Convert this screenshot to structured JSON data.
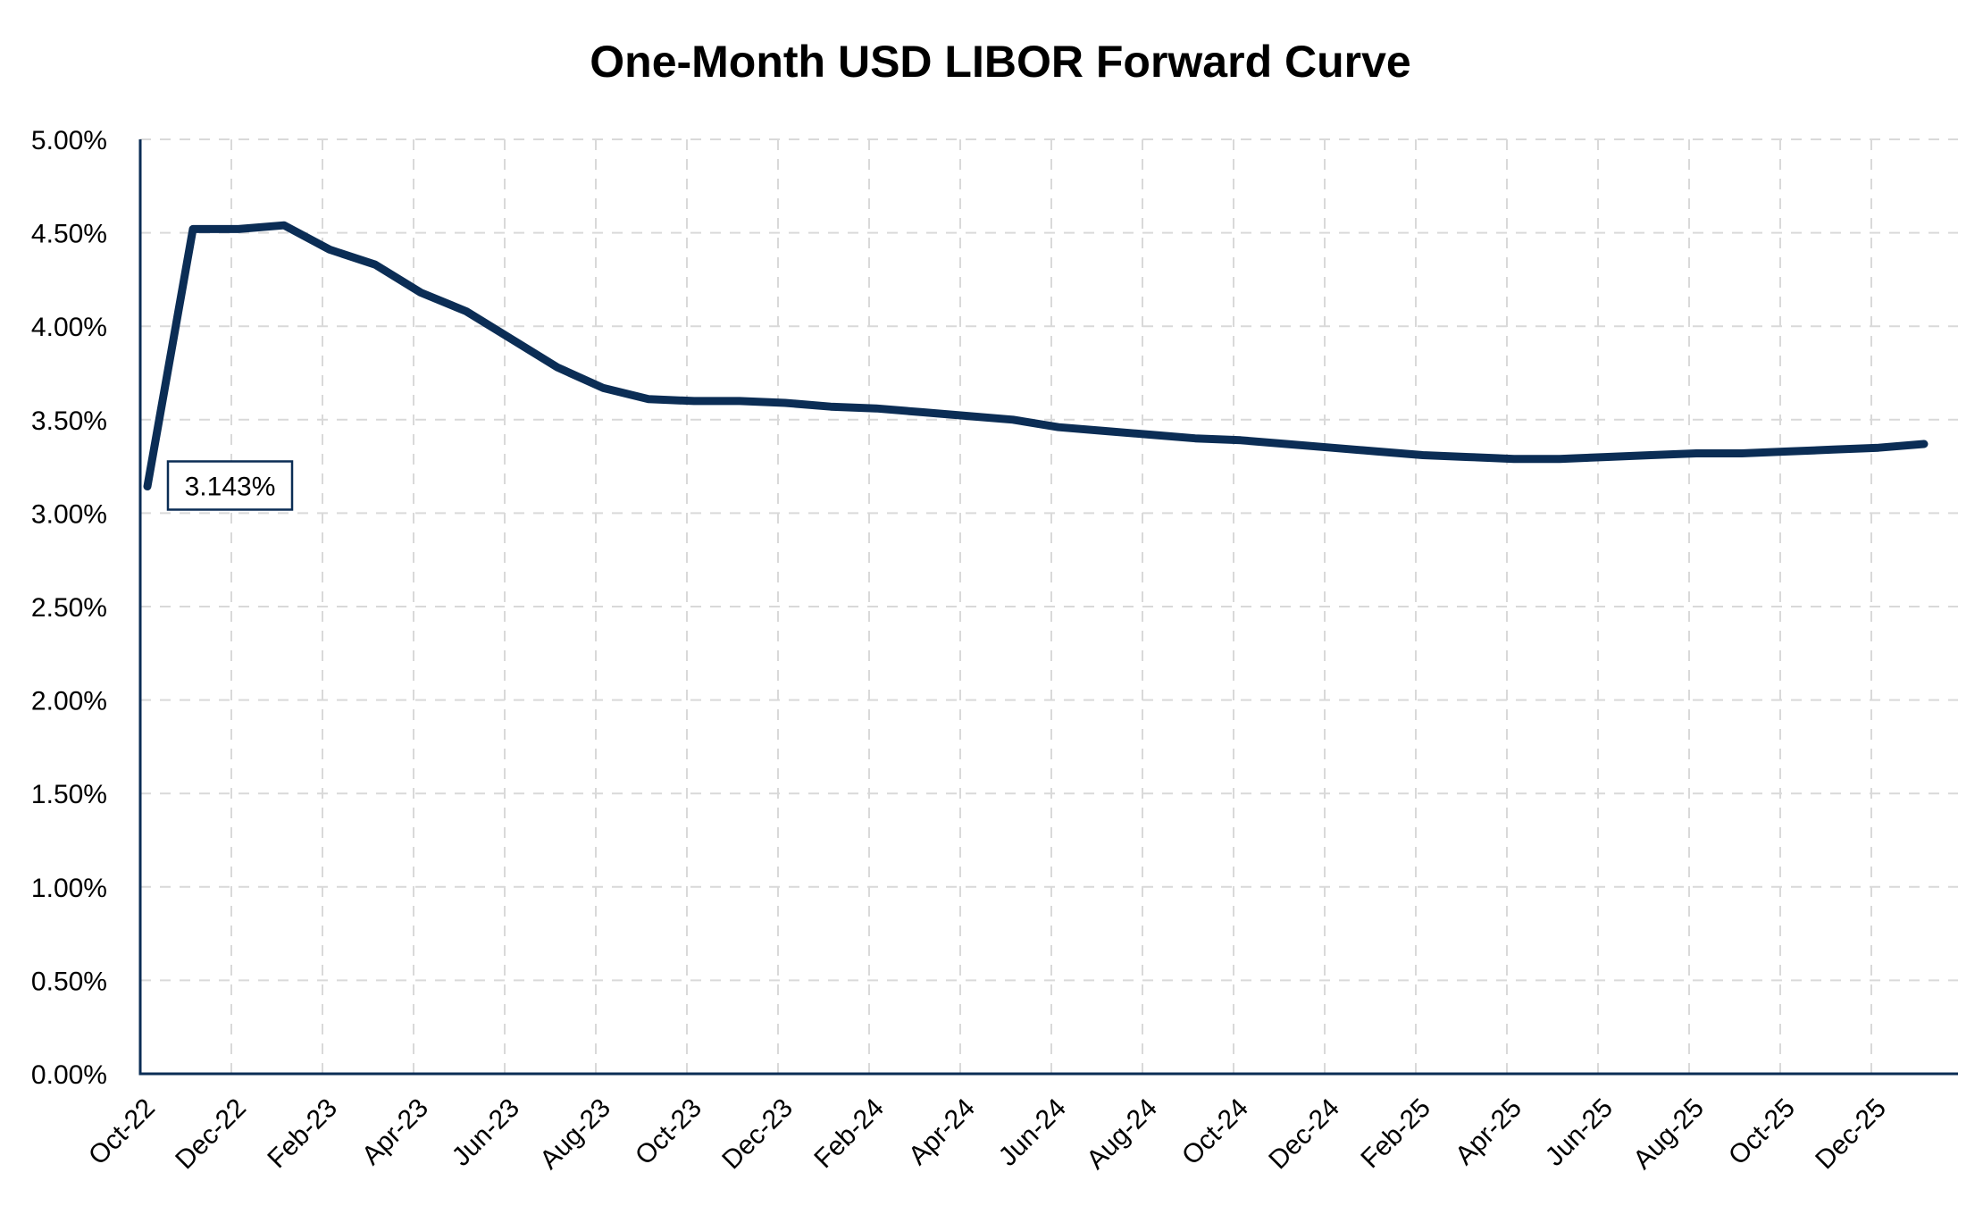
{
  "chart_data": {
    "type": "line",
    "title": "One-Month USD LIBOR Forward Curve",
    "xlabel": "",
    "ylabel": "",
    "ylim": [
      0,
      0.05
    ],
    "y_tick_labels": [
      "0.00%",
      "0.50%",
      "1.00%",
      "1.50%",
      "2.00%",
      "2.50%",
      "3.00%",
      "3.50%",
      "4.00%",
      "4.50%",
      "5.00%"
    ],
    "x_tick_labels": [
      "Oct-22",
      "Dec-22",
      "Feb-23",
      "Apr-23",
      "Jun-23",
      "Aug-23",
      "Oct-23",
      "Dec-23",
      "Feb-24",
      "Apr-24",
      "Jun-24",
      "Aug-24",
      "Oct-24",
      "Dec-24",
      "Feb-25",
      "Apr-25",
      "Jun-25",
      "Aug-25",
      "Oct-25",
      "Dec-25"
    ],
    "grid": true,
    "legend": "none",
    "line_color": "#0b2d55",
    "grid_color": "#d9d9d9",
    "annotation": {
      "text": "3.143%",
      "x": "Oct-22",
      "y": 0.03143
    },
    "x": [
      "Oct-22",
      "Nov-22",
      "Dec-22",
      "Jan-23",
      "Feb-23",
      "Mar-23",
      "Apr-23",
      "May-23",
      "Jun-23",
      "Jul-23",
      "Aug-23",
      "Sep-23",
      "Oct-23",
      "Nov-23",
      "Dec-23",
      "Jan-24",
      "Feb-24",
      "Mar-24",
      "Apr-24",
      "May-24",
      "Jun-24",
      "Jul-24",
      "Aug-24",
      "Sep-24",
      "Oct-24",
      "Nov-24",
      "Dec-24",
      "Jan-25",
      "Feb-25",
      "Mar-25",
      "Apr-25",
      "May-25",
      "Jun-25",
      "Jul-25",
      "Aug-25",
      "Sep-25",
      "Oct-25",
      "Nov-25",
      "Dec-25",
      "Jan-26"
    ],
    "values": [
      0.03143,
      0.0452,
      0.0452,
      0.0454,
      0.0441,
      0.0433,
      0.0418,
      0.0408,
      0.0393,
      0.0378,
      0.0367,
      0.0361,
      0.036,
      0.036,
      0.0359,
      0.0357,
      0.0356,
      0.0354,
      0.0352,
      0.035,
      0.0346,
      0.0344,
      0.0342,
      0.034,
      0.0339,
      0.0337,
      0.0335,
      0.0333,
      0.0331,
      0.033,
      0.0329,
      0.0329,
      0.033,
      0.0331,
      0.0332,
      0.0332,
      0.0333,
      0.0334,
      0.0335,
      0.0337
    ]
  }
}
